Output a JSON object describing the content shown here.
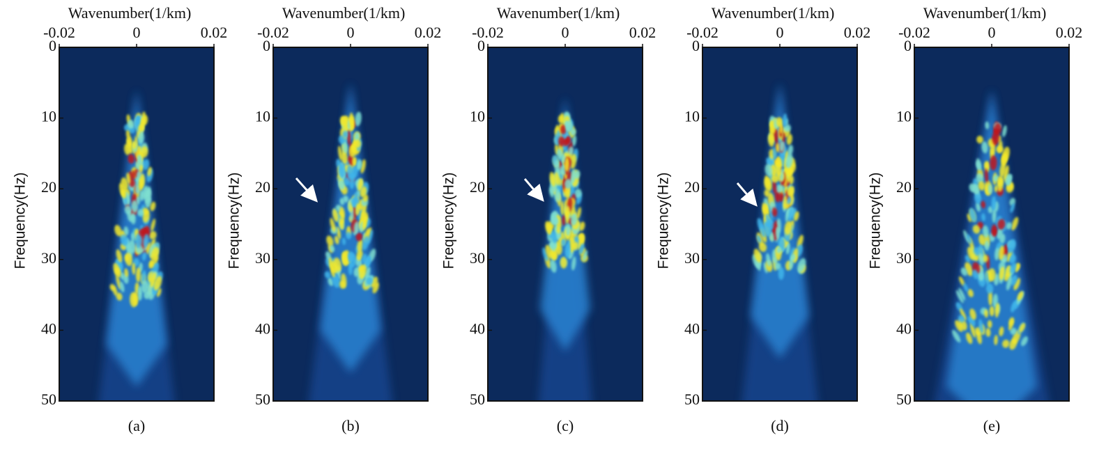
{
  "chart_data": [
    {
      "type": "heatmap",
      "xlabel": "Wavenumber(1/km)",
      "ylabel": "Frequency(Hz)",
      "caption": "(a)",
      "xlim": [
        -0.02,
        0.02
      ],
      "xticks": [
        -0.02,
        0,
        0.02
      ],
      "ylim": [
        0,
        50
      ],
      "yticks": [
        0,
        10,
        20,
        30,
        40,
        50
      ],
      "y_inverted": true
    },
    {
      "type": "heatmap",
      "xlabel": "Wavenumber(1/km)",
      "ylabel": "Frequency(Hz)",
      "caption": "(b)",
      "xlim": [
        -0.02,
        0.02
      ],
      "xticks": [
        -0.02,
        0,
        0.02
      ],
      "ylim": [
        0,
        50
      ],
      "yticks": [
        0,
        10,
        20,
        30,
        40,
        50
      ],
      "y_inverted": true
    },
    {
      "type": "heatmap",
      "xlabel": "Wavenumber(1/km)",
      "ylabel": "Frequency(Hz)",
      "caption": "(c)",
      "xlim": [
        -0.02,
        0.02
      ],
      "xticks": [
        -0.02,
        0,
        0.02
      ],
      "ylim": [
        0,
        50
      ],
      "yticks": [
        0,
        10,
        20,
        30,
        40,
        50
      ],
      "y_inverted": true
    },
    {
      "type": "heatmap",
      "xlabel": "Wavenumber(1/km)",
      "ylabel": "Frequency(Hz)",
      "caption": "(d)",
      "xlim": [
        -0.02,
        0.02
      ],
      "xticks": [
        -0.02,
        0,
        0.02
      ],
      "ylim": [
        0,
        50
      ],
      "yticks": [
        0,
        10,
        20,
        30,
        40,
        50
      ],
      "y_inverted": true
    },
    {
      "type": "heatmap",
      "xlabel": "Wavenumber(1/km)",
      "ylabel": "Frequency(Hz)",
      "caption": "(e)",
      "xlim": [
        -0.02,
        0.02
      ],
      "xticks": [
        -0.02,
        0,
        0.02
      ],
      "ylim": [
        0,
        50
      ],
      "yticks": [
        0,
        10,
        20,
        30,
        40,
        50
      ],
      "y_inverted": true
    }
  ]
}
